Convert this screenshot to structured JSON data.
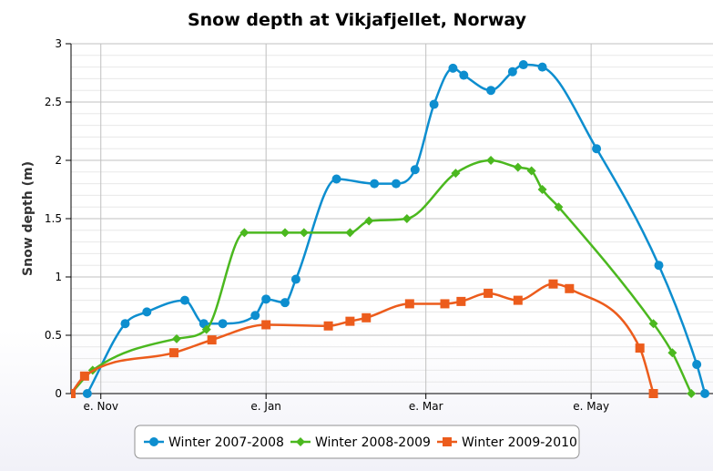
{
  "chart_data": {
    "type": "line",
    "title": "Snow depth at Vikjafjellet, Norway",
    "xlabel": "",
    "ylabel": "Snow depth (m)",
    "ylim": [
      0,
      3
    ],
    "yticks": [
      "0",
      "0.5",
      "1",
      "1.5",
      "2",
      "2.5",
      "3"
    ],
    "x_axis": "date",
    "xlim": [
      "1970-10-21",
      "1971-06-15"
    ],
    "xticks": [
      {
        "label": "e. Nov",
        "x": "1970-11-01"
      },
      {
        "label": "e. Jan",
        "x": "1971-01-01"
      },
      {
        "label": "e. Mar",
        "x": "1971-03-01"
      },
      {
        "label": "e. May",
        "x": "1971-05-01"
      }
    ],
    "grid": true,
    "legend": "bottom-center",
    "series": [
      {
        "name": "Winter 2007-2008",
        "color": "#0d8ecf",
        "marker": "circle",
        "points": [
          {
            "x": "1970-10-27",
            "y": 0
          },
          {
            "x": "1970-11-10",
            "y": 0.6
          },
          {
            "x": "1970-11-18",
            "y": 0.7
          },
          {
            "x": "1970-12-02",
            "y": 0.8
          },
          {
            "x": "1970-12-09",
            "y": 0.6
          },
          {
            "x": "1970-12-16",
            "y": 0.6
          },
          {
            "x": "1970-12-28",
            "y": 0.67
          },
          {
            "x": "1971-01-01",
            "y": 0.81
          },
          {
            "x": "1971-01-08",
            "y": 0.78
          },
          {
            "x": "1971-01-12",
            "y": 0.98
          },
          {
            "x": "1971-01-27",
            "y": 1.84
          },
          {
            "x": "1971-02-10",
            "y": 1.8
          },
          {
            "x": "1971-02-18",
            "y": 1.8
          },
          {
            "x": "1971-02-25",
            "y": 1.92
          },
          {
            "x": "1971-03-04",
            "y": 2.48
          },
          {
            "x": "1971-03-11",
            "y": 2.79
          },
          {
            "x": "1971-03-15",
            "y": 2.73
          },
          {
            "x": "1971-03-25",
            "y": 2.6
          },
          {
            "x": "1971-04-02",
            "y": 2.76
          },
          {
            "x": "1971-04-06",
            "y": 2.82
          },
          {
            "x": "1971-04-13",
            "y": 2.8
          },
          {
            "x": "1971-05-03",
            "y": 2.1
          },
          {
            "x": "1971-05-26",
            "y": 1.1
          },
          {
            "x": "1971-06-09",
            "y": 0.25
          },
          {
            "x": "1971-06-12",
            "y": 0
          }
        ]
      },
      {
        "name": "Winter 2008-2009",
        "color": "#4bb81f",
        "marker": "diamond",
        "points": [
          {
            "x": "1970-10-21",
            "y": 0
          },
          {
            "x": "1970-10-29",
            "y": 0.2
          },
          {
            "x": "1970-11-29",
            "y": 0.47
          },
          {
            "x": "1970-12-10",
            "y": 0.55
          },
          {
            "x": "1970-12-24",
            "y": 1.38
          },
          {
            "x": "1971-01-08",
            "y": 1.38
          },
          {
            "x": "1971-01-15",
            "y": 1.38
          },
          {
            "x": "1971-02-01",
            "y": 1.38
          },
          {
            "x": "1971-02-08",
            "y": 1.48
          },
          {
            "x": "1971-02-22",
            "y": 1.5
          },
          {
            "x": "1971-03-12",
            "y": 1.89
          },
          {
            "x": "1971-03-25",
            "y": 2
          },
          {
            "x": "1971-04-04",
            "y": 1.94
          },
          {
            "x": "1971-04-09",
            "y": 1.91
          },
          {
            "x": "1971-04-13",
            "y": 1.75
          },
          {
            "x": "1971-04-19",
            "y": 1.6
          },
          {
            "x": "1971-05-24",
            "y": 0.6
          },
          {
            "x": "1971-05-31",
            "y": 0.35
          },
          {
            "x": "1971-06-07",
            "y": 0
          }
        ]
      },
      {
        "name": "Winter 2009-2010",
        "color": "#ec5c1c",
        "marker": "square",
        "points": [
          {
            "x": "1970-10-21",
            "y": 0
          },
          {
            "x": "1970-10-26",
            "y": 0.15
          },
          {
            "x": "1970-11-28",
            "y": 0.35
          },
          {
            "x": "1970-12-12",
            "y": 0.46
          },
          {
            "x": "1971-01-01",
            "y": 0.59
          },
          {
            "x": "1971-01-24",
            "y": 0.58
          },
          {
            "x": "1971-02-01",
            "y": 0.62
          },
          {
            "x": "1971-02-07",
            "y": 0.65
          },
          {
            "x": "1971-02-23",
            "y": 0.77
          },
          {
            "x": "1971-03-08",
            "y": 0.77
          },
          {
            "x": "1971-03-14",
            "y": 0.79
          },
          {
            "x": "1971-03-24",
            "y": 0.86
          },
          {
            "x": "1971-04-04",
            "y": 0.8
          },
          {
            "x": "1971-04-17",
            "y": 0.94
          },
          {
            "x": "1971-04-23",
            "y": 0.9
          },
          {
            "x": "1971-05-19",
            "y": 0.39
          },
          {
            "x": "1971-05-24",
            "y": 0
          }
        ]
      }
    ]
  }
}
